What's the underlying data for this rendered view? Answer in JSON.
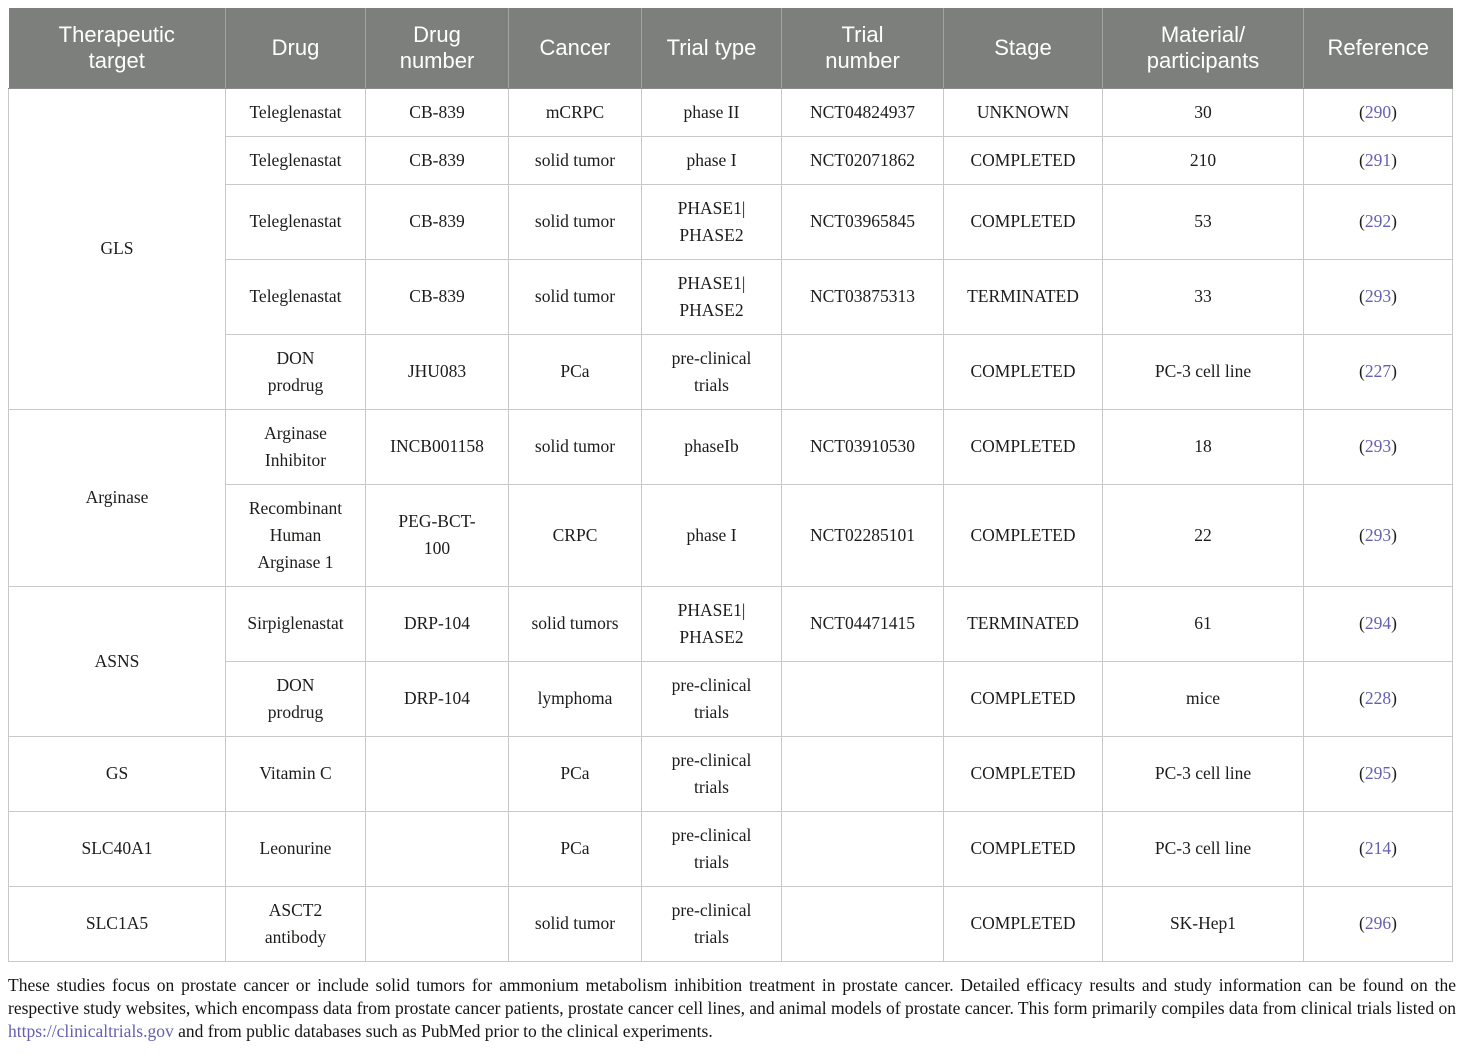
{
  "meta": {
    "paren_open": "(",
    "paren_close": ")"
  },
  "colors": {
    "header_background": "#7d7f7d",
    "header_text": "#ffffff",
    "cell_border": "#c9c9c9",
    "reference_link": "#6560af",
    "body_text": "#1c1c1a"
  },
  "table": {
    "columns": [
      "Therapeutic\ntarget",
      "Drug",
      "Drug\nnumber",
      "Cancer",
      "Trial type",
      "Trial\nnumber",
      "Stage",
      "Material/\nparticipants",
      "Reference"
    ],
    "column_slugs": [
      "therapeutic-target",
      "drug",
      "drug-number",
      "cancer",
      "trial-type",
      "trial-number",
      "stage",
      "material-participants",
      "reference"
    ],
    "groups": [
      {
        "target": "GLS",
        "rows": [
          [
            "Teleglenastat",
            "CB-839",
            "mCRPC",
            "phase II",
            "NCT04824937",
            "UNKNOWN",
            "30",
            "290"
          ],
          [
            "Teleglenastat",
            "CB-839",
            "solid tumor",
            "phase I",
            "NCT02071862",
            "COMPLETED",
            "210",
            "291"
          ],
          [
            "Teleglenastat",
            "CB-839",
            "solid tumor",
            "PHASE1|\nPHASE2",
            "NCT03965845",
            "COMPLETED",
            "53",
            "292"
          ],
          [
            "Teleglenastat",
            "CB-839",
            "solid tumor",
            "PHASE1|\nPHASE2",
            "NCT03875313",
            "TERMINATED",
            "33",
            "293"
          ],
          [
            "DON\nprodrug",
            "JHU083",
            "PCa",
            "pre-clinical\ntrials",
            "",
            "COMPLETED",
            "PC-3 cell line",
            "227"
          ]
        ]
      },
      {
        "target": "Arginase",
        "rows": [
          [
            "Arginase\nInhibitor",
            "INCB001158",
            "solid tumor",
            "phaseIb",
            "NCT03910530",
            "COMPLETED",
            "18",
            "293"
          ],
          [
            "Recombinant\nHuman\nArginase 1",
            "PEG-BCT-\n100",
            "CRPC",
            "phase I",
            "NCT02285101",
            "COMPLETED",
            "22",
            "293"
          ]
        ]
      },
      {
        "target": "ASNS",
        "rows": [
          [
            "Sirpiglenastat",
            "DRP-104",
            "solid tumors",
            "PHASE1|\nPHASE2",
            "NCT04471415",
            "TERMINATED",
            "61",
            "294"
          ],
          [
            "DON\nprodrug",
            "DRP-104",
            "lymphoma",
            "pre-clinical\ntrials",
            "",
            "COMPLETED",
            "mice",
            "228"
          ]
        ]
      },
      {
        "target": "GS",
        "rows": [
          [
            "Vitamin C",
            "",
            "PCa",
            "pre-clinical\ntrials",
            "",
            "COMPLETED",
            "PC-3 cell line",
            "295"
          ]
        ]
      },
      {
        "target": "SLC40A1",
        "rows": [
          [
            "Leonurine",
            "",
            "PCa",
            "pre-clinical\ntrials",
            "",
            "COMPLETED",
            "PC-3 cell line",
            "214"
          ]
        ]
      },
      {
        "target": "SLC1A5",
        "rows": [
          [
            "ASCT2\nantibody",
            "",
            "solid tumor",
            "pre-clinical\ntrials",
            "",
            "COMPLETED",
            "SK-Hep1",
            "296"
          ]
        ]
      }
    ]
  },
  "footnote": {
    "text_before_link": "These studies focus on prostate cancer or include solid tumors for ammonium metabolism inhibition treatment in prostate cancer. Detailed efficacy results and study information can be found on the respective study websites, which encompass data from prostate cancer patients, prostate cancer cell lines, and animal models of prostate cancer. This form primarily compiles data from clinical trials listed on ",
    "link_text": "https://clinicaltrials.gov",
    "text_after_link": " and from public databases such as PubMed prior to the clinical experiments."
  }
}
